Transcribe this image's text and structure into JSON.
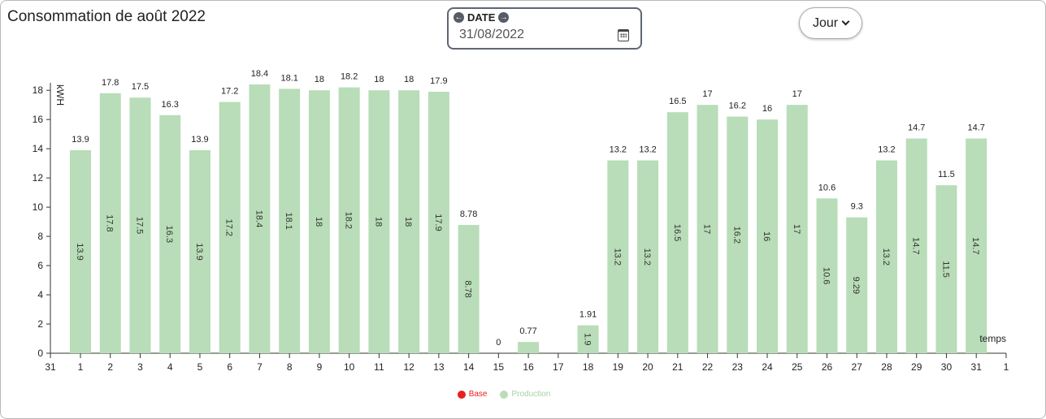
{
  "header": {
    "title": "Consommation de août 2022"
  },
  "date_picker": {
    "label": "DATE",
    "value": "31/08/2022",
    "prev_icon": "arrow-left-circle-icon",
    "next_icon": "arrow-right-circle-icon",
    "calendar_icon": "calendar-icon"
  },
  "period_select": {
    "value": "Jour",
    "icon": "chevron-down-icon"
  },
  "chart_data": {
    "type": "bar",
    "ylabel": "kWH",
    "xlabel": "temps",
    "ylim": [
      0,
      18.4
    ],
    "yticks": [
      0,
      2,
      4,
      6,
      8,
      10,
      12,
      14,
      16,
      18
    ],
    "x_axis_start_label": "31",
    "x_axis_end_label": "1",
    "categories": [
      "1",
      "2",
      "3",
      "4",
      "5",
      "6",
      "7",
      "8",
      "9",
      "10",
      "11",
      "12",
      "13",
      "14",
      "15",
      "16",
      "17",
      "18",
      "19",
      "20",
      "21",
      "22",
      "23",
      "24",
      "25",
      "26",
      "27",
      "28",
      "29",
      "30",
      "31"
    ],
    "series": [
      {
        "name": "Production",
        "color": "#b8ddb8",
        "values": [
          13.9,
          17.8,
          17.5,
          16.3,
          13.9,
          17.2,
          18.4,
          18.1,
          18,
          18.2,
          18,
          18,
          17.9,
          8.78,
          0,
          0.77,
          null,
          1.91,
          13.2,
          13.2,
          16.5,
          17,
          16.2,
          16,
          17,
          10.6,
          9.3,
          13.2,
          14.7,
          11.5,
          14.7
        ],
        "top_labels": [
          "13.9",
          "17.8",
          "17.5",
          "16.3",
          "13.9",
          "17.2",
          "18.4",
          "18.1",
          "18",
          "18.2",
          "18",
          "18",
          "17.9",
          "8.78",
          "0",
          "0.77",
          "",
          "1.91",
          "13.2",
          "13.2",
          "16.5",
          "17",
          "16.2",
          "16",
          "17",
          "10.6",
          "9.3",
          "13.2",
          "14.7",
          "11.5",
          "14.7"
        ],
        "inner_labels": [
          "13.9",
          "17.8",
          "17.5",
          "16.3",
          "13.9",
          "17.2",
          "18.4",
          "18.1",
          "18",
          "18.2",
          "18",
          "18",
          "17.9",
          "8.78",
          "",
          "",
          "",
          "1.9",
          "13.2",
          "13.2",
          "16.5",
          "17",
          "16.2",
          "16",
          "17",
          "10.6",
          "9.29",
          "13.2",
          "14.7",
          "11.5",
          "14.7"
        ]
      }
    ],
    "legend": [
      {
        "name": "Base",
        "color": "#e8201c",
        "text_color": "#e8201c"
      },
      {
        "name": "Production",
        "color": "#b8ddb8",
        "text_color": "#a6cfa6"
      }
    ]
  }
}
